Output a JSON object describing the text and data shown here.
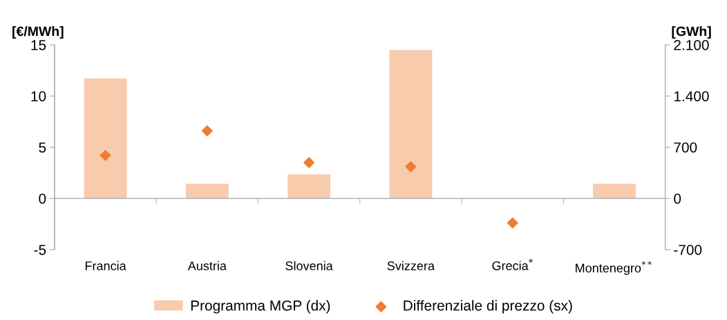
{
  "chart_data": {
    "type": "bar",
    "categories": [
      "Francia",
      "Austria",
      "Slovenia",
      "Svizzera",
      "Grecia$^{*}$",
      "Montenegro$^{**}$"
    ],
    "series": [
      {
        "name": "Programma MGP (dx)",
        "axis": "y2",
        "color": "#f8cbad",
        "values": [
          1640,
          200,
          330,
          2030,
          null,
          200
        ]
      },
      {
        "name": "Differenziale di prezzo (sx)",
        "type": "scatter",
        "axis": "y",
        "color": "#ed7d31",
        "values": [
          4.2,
          6.6,
          3.5,
          3.1,
          -2.4,
          null
        ]
      }
    ],
    "ylabel": "[€/MWh]",
    "y2label": "[GWh]",
    "ylim": [
      -5,
      15
    ],
    "yticks": [
      -5,
      0,
      5,
      10,
      15
    ],
    "y2lim": [
      -700,
      2100
    ],
    "y2ticks": [
      {
        "value": -700,
        "label": "-700"
      },
      0,
      700,
      {
        "value": 1400,
        "label": "1.400"
      },
      {
        "value": 2100,
        "label": "2.100"
      }
    ],
    "marker": "diamond",
    "legend": "bottom"
  }
}
